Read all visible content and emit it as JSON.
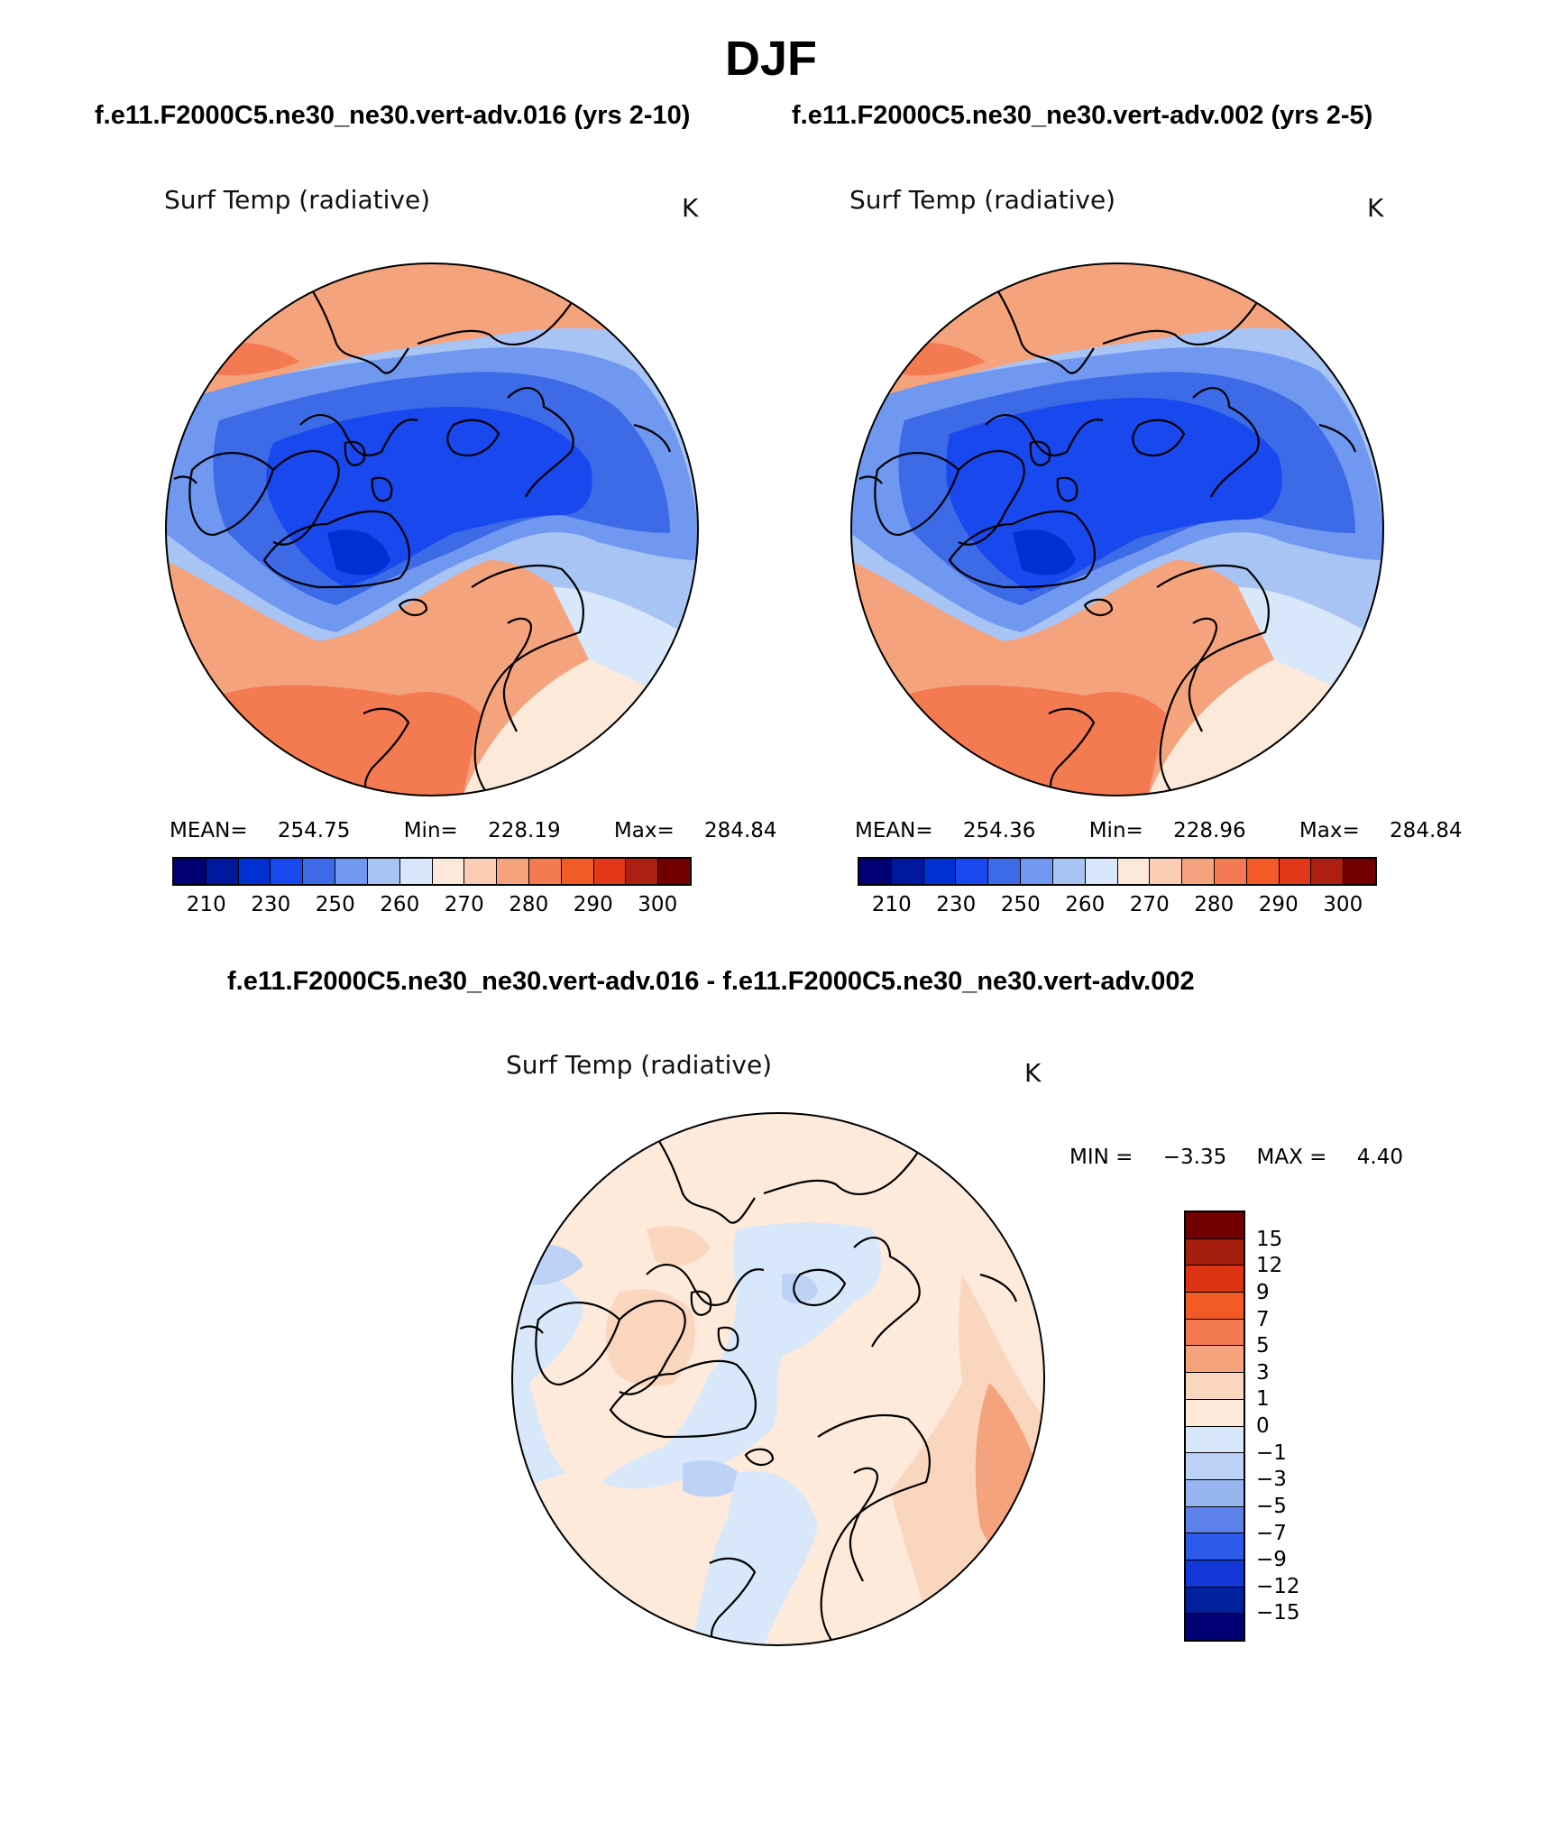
{
  "title": "DJF",
  "left_case": "f.e11.F2000C5.ne30_ne30.vert-adv.016 (yrs 2-10)",
  "right_case": "f.e11.F2000C5.ne30_ne30.vert-adv.002 (yrs 2-5)",
  "diff_title": "f.e11.F2000C5.ne30_ne30.vert-adv.016 - f.e11.F2000C5.ne30_ne30.vert-adv.002",
  "colors": {
    "abs_scale": [
      "#000073",
      "#00189e",
      "#0030d2",
      "#1a48ef",
      "#3d6ae6",
      "#7098f0",
      "#a8c4f4",
      "#d8e8fa",
      "#fde9da",
      "#fbcdb4",
      "#f5a37d",
      "#f47a52",
      "#f25a26",
      "#e4381a",
      "#ad1f10",
      "#730000"
    ],
    "diff_scale": [
      "#730000",
      "#a61e0e",
      "#dc3412",
      "#f25a26",
      "#f47a52",
      "#f5a37d",
      "#fbd6bf",
      "#fdeadb",
      "#d8e8fa",
      "#bcd2f6",
      "#95b4f0",
      "#5c82e9",
      "#2d5aeb",
      "#1238d8",
      "#00209e",
      "#000073"
    ]
  },
  "chart_data": [
    {
      "type": "heatmap",
      "projection": "north polar stereographic",
      "panel": "left",
      "label": "Surf Temp (radiative)",
      "units": "K",
      "stats": {
        "mean_label": "MEAN=",
        "mean": "254.75",
        "min_label": "Min=",
        "min": "228.19",
        "max_label": "Max=",
        "max": "284.84"
      },
      "colorbar": {
        "ticks": [
          "210",
          "230",
          "250",
          "260",
          "270",
          "280",
          "290",
          "300"
        ],
        "n_colors": 16,
        "range": [
          200,
          310
        ]
      }
    },
    {
      "type": "heatmap",
      "projection": "north polar stereographic",
      "panel": "right",
      "label": "Surf Temp (radiative)",
      "units": "K",
      "stats": {
        "mean_label": "MEAN=",
        "mean": "254.36",
        "min_label": "Min=",
        "min": "228.96",
        "max_label": "Max=",
        "max": "284.84"
      },
      "colorbar": {
        "ticks": [
          "210",
          "230",
          "250",
          "260",
          "270",
          "280",
          "290",
          "300"
        ],
        "n_colors": 16,
        "range": [
          200,
          310
        ]
      }
    },
    {
      "type": "heatmap",
      "projection": "north polar stereographic",
      "panel": "difference",
      "label": "Surf Temp (radiative)",
      "units": "K",
      "stats": {
        "min_label": "MIN =",
        "min": "−3.35",
        "max_label": "MAX =",
        "max": "4.40"
      },
      "colorbar": {
        "orientation": "vertical",
        "ticks": [
          "15",
          "12",
          "9",
          "7",
          "5",
          "3",
          "1",
          "0",
          "−1",
          "−3",
          "−5",
          "−7",
          "−9",
          "−12",
          "−15"
        ],
        "n_colors": 16
      }
    }
  ]
}
